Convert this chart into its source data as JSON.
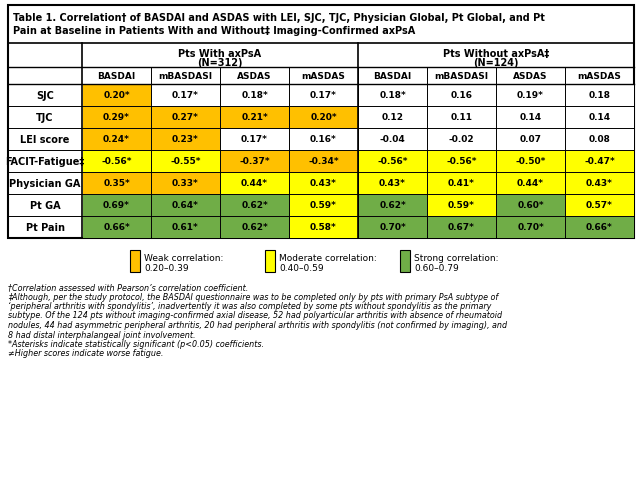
{
  "title_line1": "Table 1. Correlation† of BASDAI and ASDAS with LEI, SJC, TJC, Physician Global, Pt Global, and Pt",
  "title_line2": "Pain at Baseline in Patients With and Without‡ Imaging-Confirmed axPsA",
  "col_headers": [
    "BASDAI",
    "mBASDASI",
    "ASDAS",
    "mASDAS",
    "BASDAI",
    "mBASDASI",
    "ASDAS",
    "mASDAS"
  ],
  "row_labels": [
    "SJC",
    "TJC",
    "LEI score",
    "FACIT-Fatigue‡",
    "Physician GA",
    "Pt GA",
    "Pt Pain"
  ],
  "values": [
    [
      "0.20*",
      "0.17*",
      "0.18*",
      "0.17*",
      "0.18*",
      "0.16",
      "0.19*",
      "0.18"
    ],
    [
      "0.29*",
      "0.27*",
      "0.21*",
      "0.20*",
      "0.12",
      "0.11",
      "0.14",
      "0.14"
    ],
    [
      "0.24*",
      "0.23*",
      "0.17*",
      "0.16*",
      "-0.04",
      "-0.02",
      "0.07",
      "0.08"
    ],
    [
      "-0.56*",
      "-0.55*",
      "-0.37*",
      "-0.34*",
      "-0.56*",
      "-0.56*",
      "-0.50*",
      "-0.47*"
    ],
    [
      "0.35*",
      "0.33*",
      "0.44*",
      "0.43*",
      "0.43*",
      "0.41*",
      "0.44*",
      "0.43*"
    ],
    [
      "0.69*",
      "0.64*",
      "0.62*",
      "0.59*",
      "0.62*",
      "0.59*",
      "0.60*",
      "0.57*"
    ],
    [
      "0.66*",
      "0.61*",
      "0.62*",
      "0.58*",
      "0.70*",
      "0.67*",
      "0.70*",
      "0.66*"
    ]
  ],
  "numeric_values": [
    [
      0.2,
      0.17,
      0.18,
      0.17,
      0.18,
      0.16,
      0.19,
      0.18
    ],
    [
      0.29,
      0.27,
      0.21,
      0.2,
      0.12,
      0.11,
      0.14,
      0.14
    ],
    [
      0.24,
      0.23,
      0.17,
      0.16,
      -0.04,
      -0.02,
      0.07,
      0.08
    ],
    [
      -0.56,
      -0.55,
      -0.37,
      -0.34,
      -0.56,
      -0.56,
      -0.5,
      -0.47
    ],
    [
      0.35,
      0.33,
      0.44,
      0.43,
      0.43,
      0.41,
      0.44,
      0.43
    ],
    [
      0.69,
      0.64,
      0.62,
      0.59,
      0.62,
      0.59,
      0.6,
      0.57
    ],
    [
      0.66,
      0.61,
      0.62,
      0.58,
      0.7,
      0.67,
      0.7,
      0.66
    ]
  ],
  "color_weak": "#FFC000",
  "color_moderate": "#FFFF00",
  "color_strong": "#70AD47",
  "color_white": "#FFFFFF",
  "legend_items": [
    {
      "label1": "Weak correlation:",
      "label2": "0.20–0.39",
      "color": "#FFC000"
    },
    {
      "label1": "Moderate correlation:",
      "label2": "0.40–0.59",
      "color": "#FFFF00"
    },
    {
      "label1": "Strong correlation:",
      "label2": "0.60–0.79",
      "color": "#70AD47"
    }
  ],
  "footnotes": [
    "†Correlation assessed with Pearson’s correlation coefficient.",
    "‡Although, per the study protocol, the BASDAI questionnaire was to be completed only by pts with primary PsA subtype of",
    "‘peripheral arthritis with spondylitis’, inadvertently it was also completed by some pts without spondylitis as the primary",
    "subtype. Of the 124 pts without imaging-confirmed axial disease, 52 had polyarticular arthritis with absence of rheumatoid",
    "nodules, 44 had asymmetric peripheral arthritis, 20 had peripheral arthritis with spondylitis (not confirmed by imaging), and",
    "8 had distal interphalangeal joint involvement.",
    "*Asterisks indicate statistically significant (p<0.05) coefficients.",
    "≠Higher scores indicate worse fatigue."
  ]
}
